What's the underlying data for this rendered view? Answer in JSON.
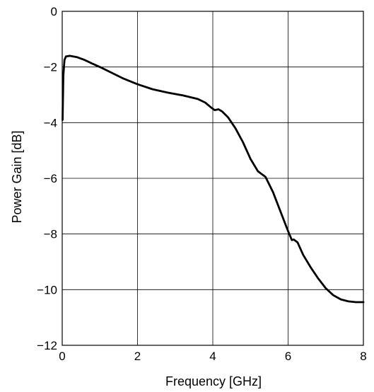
{
  "chart_data": {
    "type": "line",
    "title": "",
    "xlabel": "Frequency [GHz]",
    "ylabel": "Power Gain [dB]",
    "xlim": [
      0,
      8
    ],
    "ylim": [
      -12,
      0
    ],
    "xticks": [
      0,
      2,
      4,
      6,
      8
    ],
    "yticks": [
      0,
      -2,
      -4,
      -6,
      -8,
      -10,
      -12
    ],
    "xtick_labels": [
      "0",
      "2",
      "4",
      "6",
      "8"
    ],
    "ytick_labels": [
      "0",
      "−2",
      "−4",
      "−6",
      "−8",
      "−10",
      "−12"
    ],
    "grid": true,
    "line_color": "#000000",
    "series": [
      {
        "x": [
          0.01,
          0.03,
          0.06,
          0.1,
          0.2,
          0.4,
          0.6,
          0.8,
          1.0,
          1.3,
          1.6,
          2.0,
          2.4,
          2.8,
          3.2,
          3.6,
          3.8,
          3.95,
          4.05,
          4.15,
          4.25,
          4.4,
          4.6,
          4.8,
          5.0,
          5.2,
          5.4,
          5.6,
          5.8,
          6.0,
          6.1,
          6.15,
          6.25,
          6.4,
          6.6,
          6.8,
          7.0,
          7.2,
          7.4,
          7.6,
          7.8,
          8.0
        ],
        "y": [
          -3.9,
          -2.3,
          -1.75,
          -1.62,
          -1.6,
          -1.65,
          -1.75,
          -1.88,
          -2.0,
          -2.2,
          -2.4,
          -2.62,
          -2.8,
          -2.92,
          -3.02,
          -3.15,
          -3.28,
          -3.45,
          -3.55,
          -3.52,
          -3.6,
          -3.8,
          -4.2,
          -4.7,
          -5.3,
          -5.75,
          -5.95,
          -6.5,
          -7.2,
          -7.9,
          -8.22,
          -8.2,
          -8.3,
          -8.75,
          -9.2,
          -9.6,
          -9.95,
          -10.2,
          -10.35,
          -10.42,
          -10.45,
          -10.45
        ]
      }
    ]
  }
}
